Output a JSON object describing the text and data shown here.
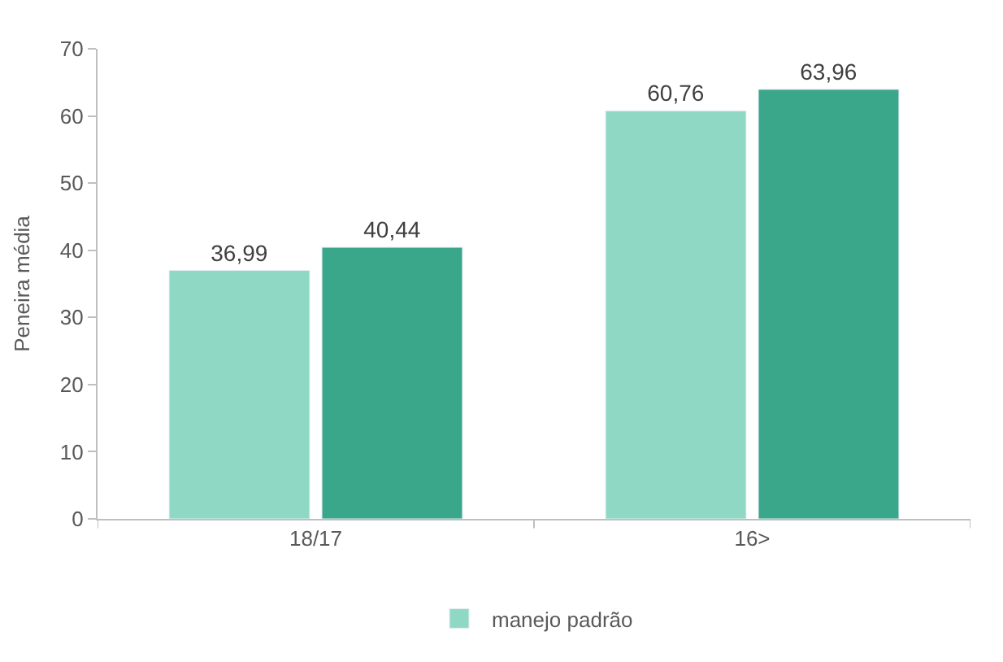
{
  "chart_data": {
    "type": "bar",
    "ylabel": "Peneira média",
    "categories": [
      "18/17",
      "16>"
    ],
    "series": [
      {
        "name": "manejo padrão",
        "color": "#8fd9c4",
        "values": [
          36.99,
          60.76
        ],
        "value_labels": [
          "36,99",
          "60,76"
        ]
      },
      {
        "color": "#3aa68a",
        "values": [
          40.44,
          63.96
        ],
        "value_labels": [
          "40,44",
          "63,96"
        ]
      }
    ],
    "ylim": [
      0,
      70
    ],
    "yticks": [
      0,
      10,
      20,
      30,
      40,
      50,
      60,
      70
    ],
    "legend": "bottom"
  }
}
